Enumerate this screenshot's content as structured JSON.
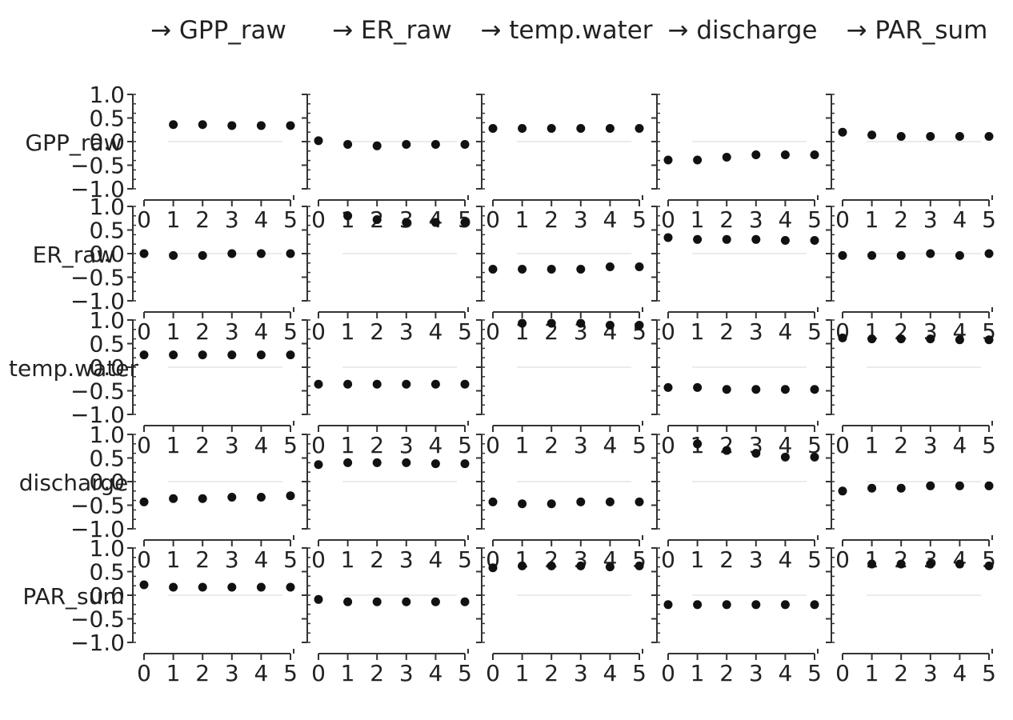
{
  "chart_data": {
    "type": "scatter",
    "variables": [
      "GPP_raw",
      "ER_raw",
      "temp.water",
      "discharge",
      "PAR_sum"
    ],
    "column_titles": [
      "→ GPP_raw",
      "→ ER_raw",
      "→ temp.water",
      "→ discharge",
      "→ PAR_sum"
    ],
    "row_labels": [
      "GPP_raw",
      "ER_raw",
      "temp.water",
      "discharge",
      "PAR_sum"
    ],
    "x": [
      0,
      1,
      2,
      3,
      4,
      5
    ],
    "xticks": [
      "0",
      "1",
      "2",
      "3",
      "4",
      "5"
    ],
    "ylim": [
      -1.0,
      1.0
    ],
    "yticks": [
      "1.0",
      "0.5",
      "0.0",
      "−0.5",
      "−1.0"
    ],
    "cells": [
      [
        [
          null,
          0.36,
          0.36,
          0.34,
          0.34,
          0.34
        ],
        [
          0.02,
          -0.06,
          -0.09,
          -0.06,
          -0.06,
          -0.06
        ],
        [
          0.28,
          0.28,
          0.28,
          0.28,
          0.28,
          0.28
        ],
        [
          -0.39,
          -0.39,
          -0.33,
          -0.28,
          -0.28,
          -0.28
        ],
        [
          0.2,
          0.14,
          0.11,
          0.11,
          0.11,
          0.11
        ]
      ],
      [
        [
          0.0,
          -0.04,
          -0.04,
          0.0,
          0.0,
          0.0
        ],
        [
          null,
          0.8,
          0.72,
          0.66,
          0.66,
          0.66
        ],
        [
          -0.33,
          -0.33,
          -0.33,
          -0.33,
          -0.28,
          -0.28
        ],
        [
          0.34,
          0.3,
          0.3,
          0.3,
          0.28,
          0.28
        ],
        [
          -0.04,
          -0.04,
          -0.04,
          0.0,
          -0.04,
          0.0
        ]
      ],
      [
        [
          0.26,
          0.26,
          0.26,
          0.26,
          0.26,
          0.26
        ],
        [
          -0.36,
          -0.36,
          -0.36,
          -0.36,
          -0.36,
          -0.36
        ],
        [
          null,
          0.93,
          0.93,
          0.93,
          0.89,
          0.89
        ],
        [
          -0.43,
          -0.43,
          -0.47,
          -0.47,
          -0.47,
          -0.47
        ],
        [
          0.62,
          0.6,
          0.6,
          0.6,
          0.58,
          0.58
        ]
      ],
      [
        [
          -0.43,
          -0.36,
          -0.36,
          -0.33,
          -0.33,
          -0.3
        ],
        [
          0.36,
          0.4,
          0.4,
          0.4,
          0.38,
          0.38
        ],
        [
          -0.43,
          -0.47,
          -0.47,
          -0.43,
          -0.43,
          -0.43
        ],
        [
          null,
          0.8,
          0.66,
          0.6,
          0.52,
          0.52
        ],
        [
          -0.2,
          -0.14,
          -0.14,
          -0.09,
          -0.09,
          -0.09
        ]
      ],
      [
        [
          0.22,
          0.17,
          0.17,
          0.17,
          0.17,
          0.17
        ],
        [
          -0.09,
          -0.14,
          -0.14,
          -0.14,
          -0.14,
          -0.14
        ],
        [
          0.58,
          0.62,
          0.62,
          0.62,
          0.6,
          0.62
        ],
        [
          -0.2,
          -0.2,
          -0.2,
          -0.2,
          -0.2,
          -0.2
        ],
        [
          null,
          0.66,
          0.66,
          0.66,
          0.66,
          0.62
        ]
      ]
    ],
    "grid": false
  }
}
